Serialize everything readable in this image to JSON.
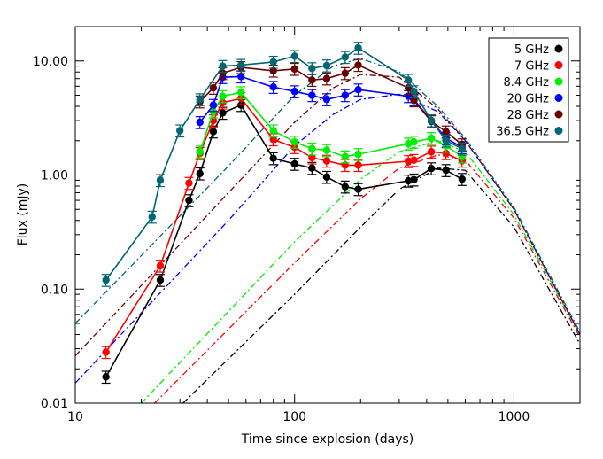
{
  "chart_data": {
    "type": "line",
    "title": "",
    "xlabel": "Time since explosion (days)",
    "ylabel": "Flux (mJy)",
    "x_scale": "log",
    "y_scale": "log",
    "xlim": [
      10,
      2000
    ],
    "ylim": [
      0.01,
      20
    ],
    "x_ticks": [
      {
        "value": 10,
        "label": "10"
      },
      {
        "value": 100,
        "label": "100"
      },
      {
        "value": 1000,
        "label": "1000"
      }
    ],
    "y_ticks": [
      {
        "value": 0.01,
        "label": "0.01"
      },
      {
        "value": 0.1,
        "label": "0.10"
      },
      {
        "value": 1,
        "label": "1.00"
      },
      {
        "value": 10,
        "label": "10.00"
      }
    ],
    "legend_position": "top-right",
    "grid": false,
    "series": [
      {
        "name": "5 GHz",
        "color": "#000000",
        "x": [
          13.8,
          24.4,
          33,
          37,
          42.6,
          47,
          57,
          80,
          100,
          120,
          140,
          170,
          195,
          330,
          350,
          420,
          490,
          580
        ],
        "y": [
          0.017,
          0.12,
          0.6,
          1.03,
          2.4,
          3.5,
          4.1,
          1.4,
          1.25,
          1.15,
          0.96,
          0.79,
          0.75,
          0.89,
          0.91,
          1.14,
          1.1,
          0.92
        ],
        "model": {
          "x": [
            31,
            100,
            200,
            300,
            450,
            600,
            1000,
            2000
          ],
          "y": [
            0.01,
            0.09,
            0.35,
            0.75,
            1.15,
            1.1,
            0.35,
            0.033
          ]
        }
      },
      {
        "name": "7 GHz",
        "color": "#ff0000",
        "x": [
          13.8,
          24.4,
          33,
          37,
          42.6,
          47,
          57,
          80,
          100,
          120,
          140,
          170,
          195,
          330,
          350,
          420,
          490,
          580
        ],
        "y": [
          0.028,
          0.16,
          0.85,
          1.55,
          3.0,
          4.3,
          4.7,
          2.05,
          1.75,
          1.42,
          1.33,
          1.22,
          1.22,
          1.32,
          1.35,
          1.6,
          1.55,
          1.33
        ],
        "model": {
          "x": [
            23,
            100,
            200,
            300,
            450,
            600,
            1000,
            2000
          ],
          "y": [
            0.01,
            0.17,
            0.62,
            1.15,
            1.5,
            1.35,
            0.42,
            0.038
          ]
        }
      },
      {
        "name": "8.4 GHz",
        "color": "#00ee00",
        "x": [
          37,
          42.6,
          47,
          57,
          80,
          100,
          120,
          140,
          170,
          195,
          330,
          350,
          420,
          490,
          580
        ],
        "y": [
          1.6,
          3.6,
          4.9,
          5.3,
          2.45,
          1.95,
          1.7,
          1.65,
          1.45,
          1.52,
          1.88,
          1.95,
          2.1,
          1.8,
          1.45
        ],
        "model": {
          "x": [
            20,
            100,
            200,
            300,
            450,
            600,
            1000,
            2000
          ],
          "y": [
            0.01,
            0.26,
            0.92,
            1.6,
            2.0,
            1.6,
            0.45,
            0.04
          ]
        }
      },
      {
        "name": "20 GHz",
        "color": "#0000ff",
        "x": [
          37,
          42.6,
          47,
          57,
          80,
          100,
          120,
          140,
          170,
          195,
          330,
          350,
          420,
          490,
          580
        ],
        "y": [
          2.9,
          4.1,
          7.2,
          7.3,
          5.9,
          5.4,
          5.0,
          4.6,
          5.0,
          5.6,
          4.9,
          4.6,
          3.0,
          2.1,
          1.75
        ],
        "model": {
          "x": [
            10,
            50,
            100,
            150,
            200,
            300,
            450,
            600,
            1000,
            2000
          ],
          "y": [
            0.015,
            0.4,
            1.8,
            3.4,
            4.6,
            5.1,
            3.6,
            2.0,
            0.5,
            0.04
          ]
        }
      },
      {
        "name": "28 GHz",
        "color": "#6b0000",
        "x": [
          37,
          42.6,
          47,
          57,
          80,
          100,
          120,
          140,
          170,
          195,
          330,
          350,
          420,
          490,
          580
        ],
        "y": [
          4.4,
          5.8,
          7.8,
          8.8,
          8.2,
          8.5,
          6.8,
          7.0,
          7.8,
          9.2,
          5.8,
          4.5,
          2.95,
          2.4,
          1.85
        ],
        "model": {
          "x": [
            10,
            50,
            100,
            150,
            200,
            300,
            450,
            600,
            1000,
            2000
          ],
          "y": [
            0.026,
            0.7,
            2.9,
            5.8,
            7.6,
            7.2,
            3.8,
            2.0,
            0.5,
            0.04
          ]
        }
      },
      {
        "name": "36.5 GHz",
        "color": "#006670",
        "x": [
          13.8,
          22.4,
          24.4,
          30,
          37,
          47,
          57,
          80,
          100,
          120,
          140,
          170,
          195,
          330,
          350,
          420,
          490,
          580
        ],
        "y": [
          0.12,
          0.43,
          0.9,
          2.45,
          4.6,
          9.0,
          9.2,
          9.8,
          11.0,
          8.6,
          9.1,
          10.8,
          13.0,
          6.8,
          5.4,
          3.0,
          2.0,
          1.7
        ],
        "model": {
          "x": [
            10,
            50,
            100,
            150,
            200,
            300,
            450,
            600,
            1000,
            2000
          ],
          "y": [
            0.05,
            1.2,
            5.0,
            9.0,
            10.5,
            8.0,
            4.0,
            2.1,
            0.52,
            0.042
          ]
        }
      }
    ]
  }
}
